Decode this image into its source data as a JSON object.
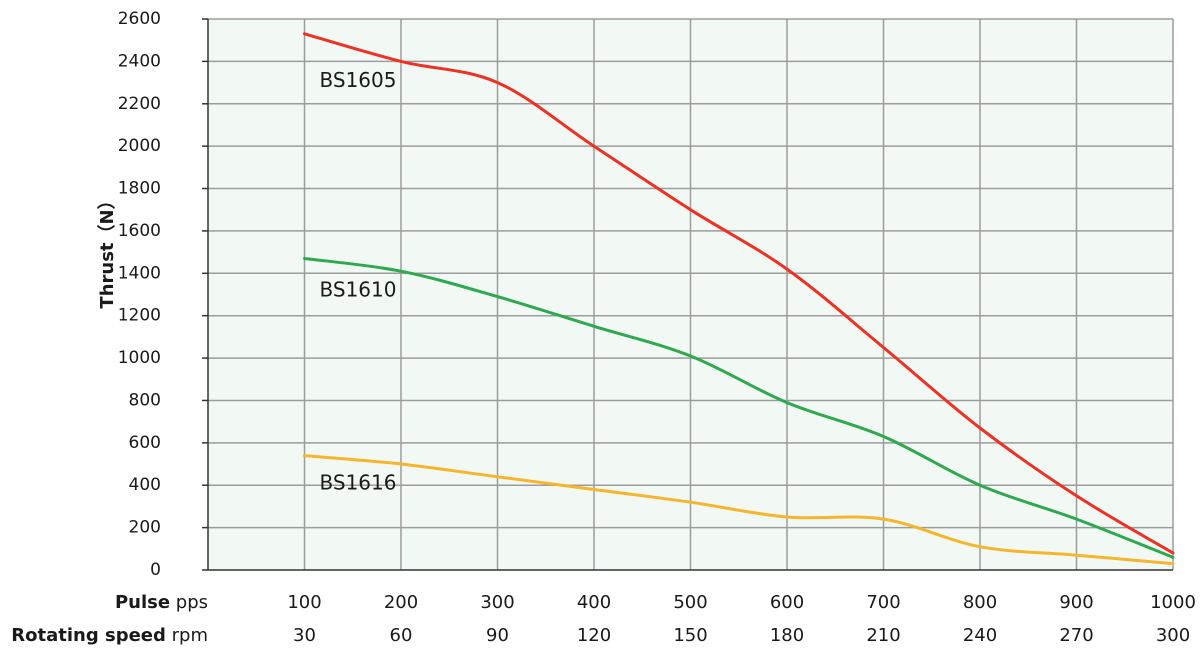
{
  "chart_data": {
    "type": "line",
    "ylabel": "Thrust（N）",
    "x_rows": [
      {
        "label_bold": "Pulse",
        "label_unit": "pps",
        "ticks": [
          "100",
          "200",
          "300",
          "400",
          "500",
          "600",
          "700",
          "800",
          "900",
          "1000"
        ]
      },
      {
        "label_bold": "Rotating speed",
        "label_unit": "rpm",
        "ticks": [
          "30",
          "60",
          "90",
          "120",
          "150",
          "180",
          "210",
          "240",
          "270",
          "300"
        ]
      }
    ],
    "y_ticks": [
      "0",
      "200",
      "400",
      "600",
      "800",
      "1000",
      "1200",
      "1400",
      "1600",
      "1800",
      "2000",
      "2200",
      "2400",
      "2600"
    ],
    "xlim": [
      0,
      1000
    ],
    "ylim": [
      0,
      2600
    ],
    "grid": true,
    "series": [
      {
        "name": "BS1605",
        "color": "#ee3124",
        "x": [
          100,
          200,
          300,
          400,
          500,
          600,
          700,
          800,
          900,
          1000
        ],
        "y": [
          2530,
          2400,
          2300,
          2000,
          1700,
          1420,
          1050,
          670,
          350,
          80
        ]
      },
      {
        "name": "BS1610",
        "color": "#2fa84f",
        "x": [
          100,
          200,
          300,
          400,
          500,
          600,
          700,
          800,
          900,
          1000
        ],
        "y": [
          1470,
          1410,
          1290,
          1150,
          1010,
          790,
          630,
          400,
          240,
          60
        ]
      },
      {
        "name": "BS1616",
        "color": "#f5b62d",
        "x": [
          100,
          200,
          300,
          400,
          500,
          600,
          700,
          800,
          900,
          1000
        ],
        "y": [
          540,
          500,
          440,
          380,
          320,
          250,
          240,
          110,
          70,
          30
        ]
      }
    ]
  }
}
